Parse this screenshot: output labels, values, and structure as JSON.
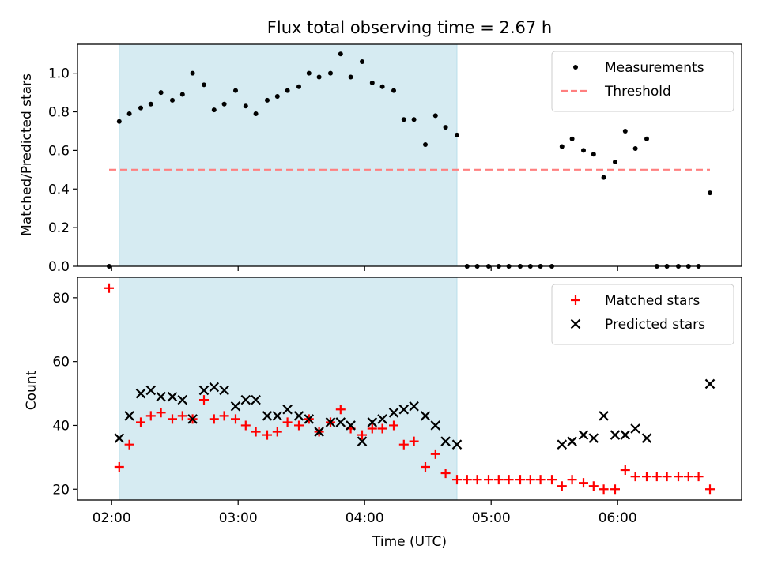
{
  "chart_data": {
    "title": "Flux total observing time = 2.67 h",
    "xlabel": "Time (UTC)",
    "x_unit": "hours UTC",
    "x_range": [
      1.73,
      6.98
    ],
    "x_ticks": [
      {
        "value": 2,
        "label": "02:00"
      },
      {
        "value": 3,
        "label": "03:00"
      },
      {
        "value": 4,
        "label": "04:00"
      },
      {
        "value": 5,
        "label": "05:00"
      },
      {
        "value": 6,
        "label": "06:00"
      }
    ],
    "shaded_span": {
      "start": 2.06,
      "end": 4.73,
      "color": "#add8e6"
    },
    "panels": [
      {
        "type": "scatter",
        "ylabel": "Matched/Predicted stars",
        "ylim": [
          0,
          1.15
        ],
        "yticks": [
          "0.0",
          "0.2",
          "0.4",
          "0.6",
          "0.8",
          "1.0"
        ],
        "legend_position": "top-right",
        "series": [
          {
            "name": "Measurements",
            "kind": "dots",
            "color": "#000000",
            "x": [
              1.98,
              2.06,
              2.14,
              2.23,
              2.31,
              2.39,
              2.48,
              2.56,
              2.64,
              2.73,
              2.81,
              2.89,
              2.98,
              3.06,
              3.14,
              3.23,
              3.31,
              3.39,
              3.48,
              3.56,
              3.64,
              3.73,
              3.81,
              3.89,
              3.98,
              4.06,
              4.14,
              4.23,
              4.31,
              4.39,
              4.48,
              4.56,
              4.64,
              4.73,
              4.81,
              4.89,
              4.98,
              5.06,
              5.14,
              5.23,
              5.31,
              5.39,
              5.48,
              5.56,
              5.64,
              5.73,
              5.81,
              5.89,
              5.98,
              6.06,
              6.14,
              6.23,
              6.31,
              6.39,
              6.48,
              6.56,
              6.64,
              6.73
            ],
            "y": [
              0.0,
              0.75,
              0.79,
              0.82,
              0.84,
              0.9,
              0.86,
              0.89,
              1.0,
              0.94,
              0.81,
              0.84,
              0.91,
              0.83,
              0.79,
              0.86,
              0.88,
              0.91,
              0.93,
              1.0,
              0.98,
              1.0,
              1.1,
              0.98,
              1.06,
              0.95,
              0.93,
              0.91,
              0.76,
              0.76,
              0.63,
              0.78,
              0.72,
              0.68,
              0.0,
              0.0,
              0.0,
              0.0,
              0.0,
              0.0,
              0.0,
              0.0,
              0.0,
              0.62,
              0.66,
              0.6,
              0.58,
              0.46,
              0.54,
              0.7,
              0.61,
              0.66,
              0.0,
              0.0,
              0.0,
              0.0,
              0.0,
              0.38
            ]
          },
          {
            "name": "Threshold",
            "kind": "dashed-line",
            "color": "#ff7f7f",
            "x": [
              1.98,
              6.73
            ],
            "y": [
              0.5,
              0.5
            ]
          }
        ]
      },
      {
        "type": "scatter",
        "ylabel": "Count",
        "ylim": [
          16.6,
          86.4
        ],
        "yticks": [
          "20",
          "40",
          "60",
          "80"
        ],
        "legend_position": "top-right",
        "series": [
          {
            "name": "Matched stars",
            "kind": "plus",
            "color": "#ff0000",
            "x": [
              1.98,
              2.06,
              2.14,
              2.23,
              2.31,
              2.39,
              2.48,
              2.56,
              2.64,
              2.73,
              2.81,
              2.89,
              2.98,
              3.06,
              3.14,
              3.23,
              3.31,
              3.39,
              3.48,
              3.56,
              3.64,
              3.73,
              3.81,
              3.89,
              3.98,
              4.06,
              4.14,
              4.23,
              4.31,
              4.39,
              4.48,
              4.56,
              4.64,
              4.73,
              4.81,
              4.89,
              4.98,
              5.06,
              5.14,
              5.23,
              5.31,
              5.39,
              5.48,
              5.56,
              5.64,
              5.73,
              5.81,
              5.89,
              5.98,
              6.06,
              6.14,
              6.23,
              6.31,
              6.39,
              6.48,
              6.56,
              6.64,
              6.73
            ],
            "y": [
              83,
              27,
              34,
              41,
              43,
              44,
              42,
              43,
              42,
              48,
              42,
              43,
              42,
              40,
              38,
              37,
              38,
              41,
              40,
              42,
              38,
              41,
              45,
              39,
              37,
              39,
              39,
              40,
              34,
              35,
              27,
              31,
              25,
              23,
              23,
              23,
              23,
              23,
              23,
              23,
              23,
              23,
              23,
              21,
              23,
              22,
              21,
              20,
              20,
              26,
              24,
              24,
              24,
              24,
              24,
              24,
              24,
              20
            ]
          },
          {
            "name": "Predicted stars",
            "kind": "x",
            "color": "#000000",
            "x": [
              2.06,
              2.14,
              2.23,
              2.31,
              2.39,
              2.48,
              2.56,
              2.64,
              2.73,
              2.81,
              2.89,
              2.98,
              3.06,
              3.14,
              3.23,
              3.31,
              3.39,
              3.48,
              3.56,
              3.64,
              3.73,
              3.81,
              3.89,
              3.98,
              4.06,
              4.14,
              4.23,
              4.31,
              4.39,
              4.48,
              4.56,
              4.64,
              4.73,
              5.56,
              5.64,
              5.73,
              5.81,
              5.89,
              5.98,
              6.06,
              6.14,
              6.23,
              6.73
            ],
            "y": [
              36,
              43,
              50,
              51,
              49,
              49,
              48,
              42,
              51,
              52,
              51,
              46,
              48,
              48,
              43,
              43,
              45,
              43,
              42,
              38,
              41,
              41,
              40,
              35,
              41,
              42,
              44,
              45,
              46,
              43,
              40,
              35,
              34,
              34,
              35,
              37,
              36,
              43,
              37,
              37,
              39,
              36,
              53
            ]
          }
        ]
      }
    ]
  }
}
